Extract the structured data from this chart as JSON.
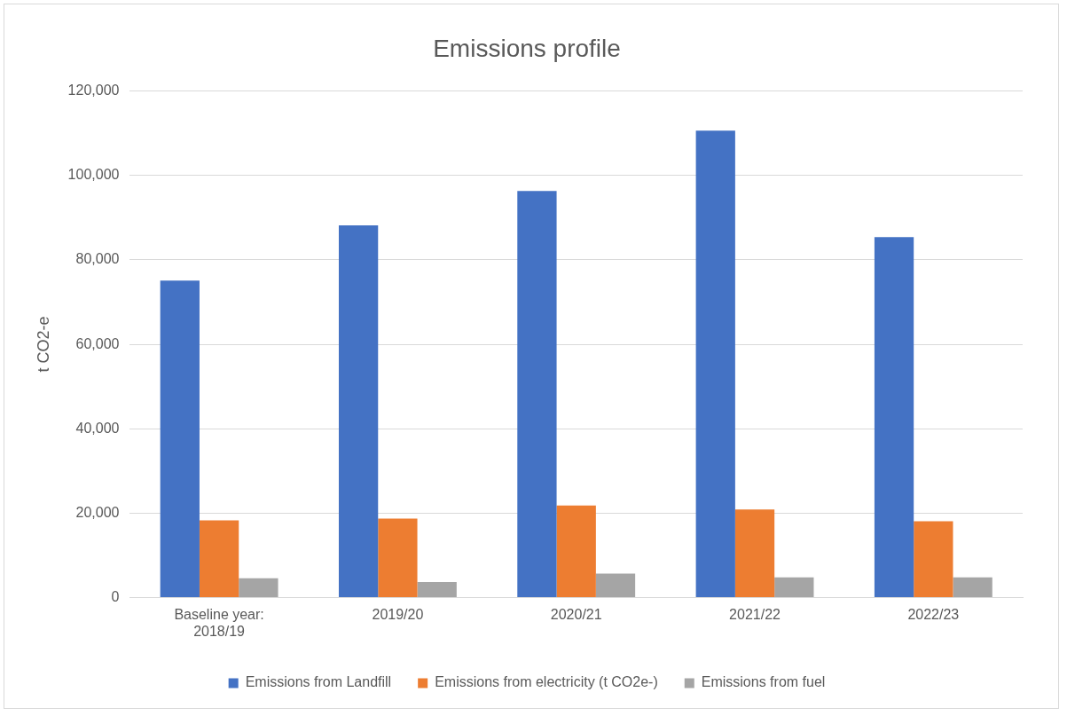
{
  "chart_data": {
    "type": "bar",
    "title": "Emissions profile",
    "ylabel": "t CO2-e",
    "categories": [
      "Baseline year: 2018/19",
      "2019/20",
      "2020/21",
      "2021/22",
      "2022/23"
    ],
    "series": [
      {
        "name": "Emissions from Landfill",
        "color": "#4472c4",
        "values": [
          75100,
          88200,
          96300,
          110600,
          85400
        ]
      },
      {
        "name": "Emissions from electricity (t CO2e-)",
        "color": "#ed7d31",
        "values": [
          18300,
          18700,
          21800,
          20900,
          18100
        ]
      },
      {
        "name": "Emissions from fuel",
        "color": "#a5a5a5",
        "values": [
          4600,
          3700,
          5700,
          4800,
          4800
        ]
      }
    ],
    "ylim": [
      0,
      120000
    ],
    "yticks": [
      0,
      {
        "value": 20000,
        "label": "20,000"
      },
      {
        "value": 40000,
        "label": "40,000"
      },
      {
        "value": 60000,
        "label": "60,000"
      },
      {
        "value": 80000,
        "label": "80,000"
      },
      {
        "value": 100000,
        "label": "100,000"
      },
      {
        "value": 120000,
        "label": "120,000"
      }
    ],
    "grid": "y",
    "legend": "bottom"
  }
}
